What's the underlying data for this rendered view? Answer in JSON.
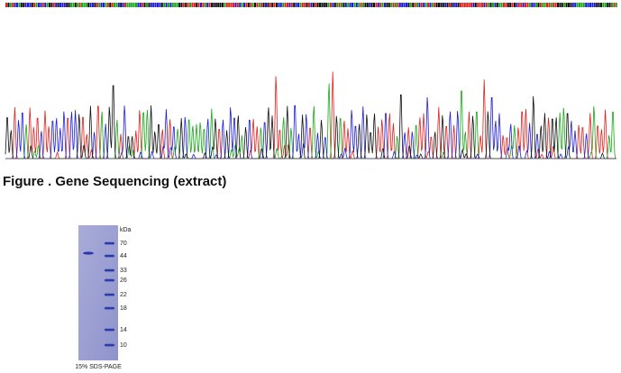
{
  "figure": {
    "caption": "Figure . Gene Sequencing (extract)"
  },
  "gel": {
    "unit": "kDa",
    "markers": [
      70,
      44,
      33,
      26,
      22,
      18,
      14,
      10
    ],
    "caption": "15% SDS-PAGE"
  }
}
